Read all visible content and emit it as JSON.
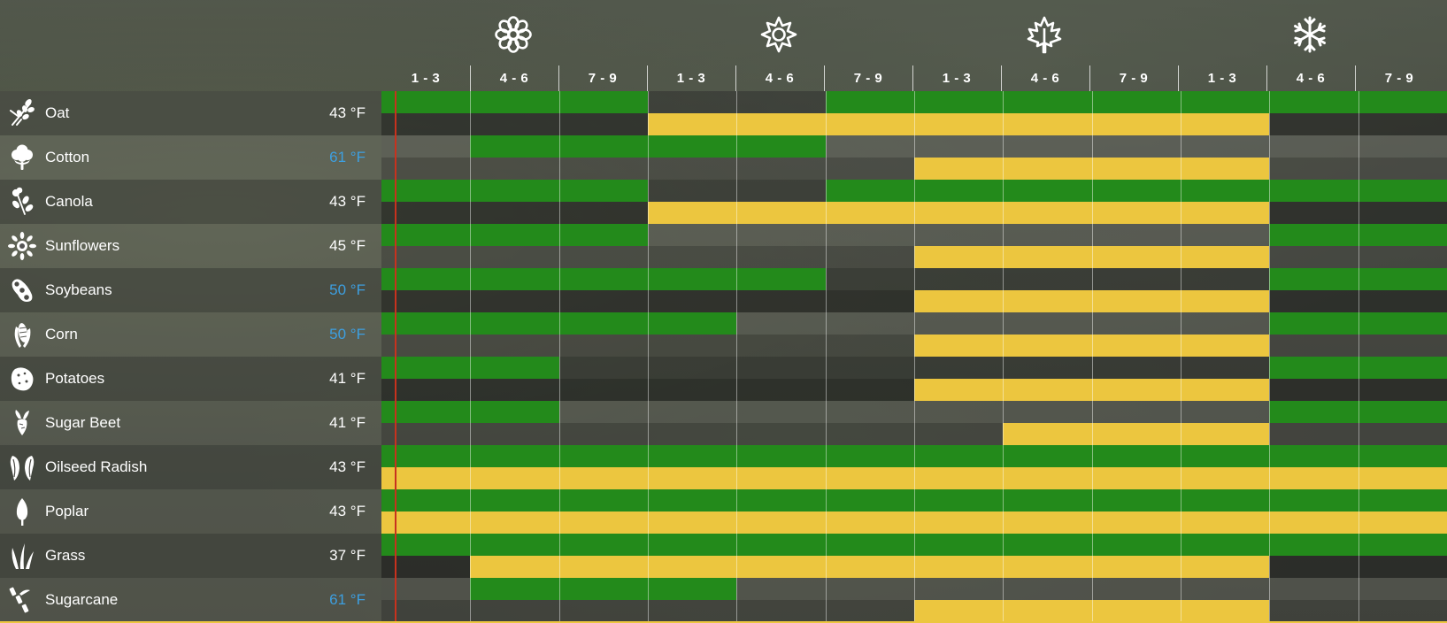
{
  "seasons": [
    {
      "name": "spring",
      "icon": "flower-icon"
    },
    {
      "name": "summer",
      "icon": "sun-icon"
    },
    {
      "name": "autumn",
      "icon": "maple-leaf-icon"
    },
    {
      "name": "winter",
      "icon": "snowflake-icon"
    }
  ],
  "periods": [
    "1 - 3",
    "4 - 6",
    "7 - 9",
    "1 - 3",
    "4 - 6",
    "7 - 9",
    "1 - 3",
    "4 - 6",
    "7 - 9",
    "1 - 3",
    "4 - 6",
    "7 - 9"
  ],
  "colors": {
    "planting": "#238a1b",
    "harvest": "#ecc63f",
    "warm_temp": "#3d9fe0",
    "current_marker": "#c8321e"
  },
  "crops": [
    {
      "name": "Oat",
      "icon": "oat-icon",
      "temp": "43 °F",
      "warm": false,
      "plant": [
        [
          0,
          3
        ],
        [
          5,
          12
        ]
      ],
      "harvest": [
        [
          3,
          10
        ]
      ]
    },
    {
      "name": "Cotton",
      "icon": "cotton-icon",
      "temp": "61 °F",
      "warm": true,
      "plant": [
        [
          1,
          5
        ]
      ],
      "harvest": [
        [
          6,
          10
        ]
      ]
    },
    {
      "name": "Canola",
      "icon": "canola-icon",
      "temp": "43 °F",
      "warm": false,
      "plant": [
        [
          0,
          3
        ],
        [
          5,
          12
        ]
      ],
      "harvest": [
        [
          3,
          10
        ]
      ]
    },
    {
      "name": "Sunflowers",
      "icon": "sunflower-icon",
      "temp": "45 °F",
      "warm": false,
      "plant": [
        [
          0,
          3
        ],
        [
          10,
          12
        ]
      ],
      "harvest": [
        [
          6,
          10
        ]
      ]
    },
    {
      "name": "Soybeans",
      "icon": "soybean-icon",
      "temp": "50 °F",
      "warm": true,
      "plant": [
        [
          0,
          5
        ],
        [
          10,
          12
        ]
      ],
      "harvest": [
        [
          6,
          10
        ]
      ]
    },
    {
      "name": "Corn",
      "icon": "corn-icon",
      "temp": "50 °F",
      "warm": true,
      "plant": [
        [
          0,
          4
        ],
        [
          10,
          12
        ]
      ],
      "harvest": [
        [
          6,
          10
        ]
      ]
    },
    {
      "name": "Potatoes",
      "icon": "potato-icon",
      "temp": "41 °F",
      "warm": false,
      "plant": [
        [
          0,
          2
        ],
        [
          10,
          12
        ]
      ],
      "harvest": [
        [
          6,
          10
        ]
      ]
    },
    {
      "name": "Sugar Beet",
      "icon": "sugar-beet-icon",
      "temp": "41 °F",
      "warm": false,
      "plant": [
        [
          0,
          2
        ],
        [
          10,
          12
        ]
      ],
      "harvest": [
        [
          7,
          10
        ]
      ]
    },
    {
      "name": "Oilseed Radish",
      "icon": "oilseed-radish-icon",
      "temp": "43 °F",
      "warm": false,
      "plant": [
        [
          0,
          12
        ]
      ],
      "harvest": [
        [
          0,
          12
        ]
      ]
    },
    {
      "name": "Poplar",
      "icon": "poplar-icon",
      "temp": "43 °F",
      "warm": false,
      "plant": [
        [
          0,
          12
        ]
      ],
      "harvest": [
        [
          0,
          12
        ]
      ]
    },
    {
      "name": "Grass",
      "icon": "grass-icon",
      "temp": "37 °F",
      "warm": false,
      "plant": [
        [
          0,
          12
        ]
      ],
      "harvest": [
        [
          1,
          10
        ]
      ]
    },
    {
      "name": "Sugarcane",
      "icon": "sugarcane-icon",
      "temp": "61 °F",
      "warm": true,
      "plant": [
        [
          1,
          4
        ]
      ],
      "harvest": [
        [
          6,
          10
        ]
      ]
    }
  ]
}
